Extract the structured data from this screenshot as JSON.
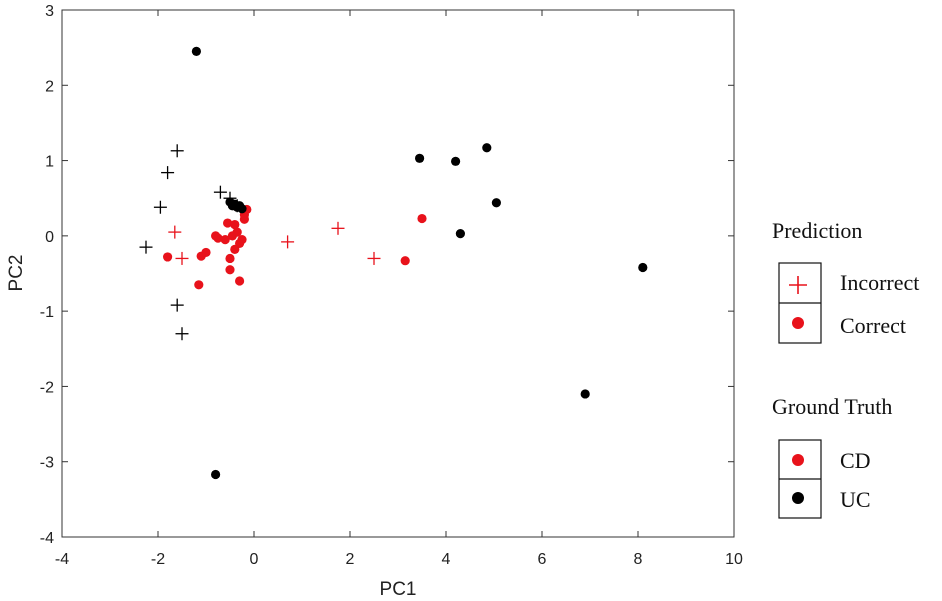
{
  "chart_data": {
    "type": "scatter",
    "xlabel": "PC1",
    "ylabel": "PC2",
    "xlim": [
      -4,
      10
    ],
    "ylim": [
      -4,
      3
    ],
    "xticks": [
      "-4",
      "-2",
      "0",
      "2",
      "4",
      "6",
      "8",
      "10"
    ],
    "yticks": [
      "3",
      "2",
      "1",
      "0",
      "-1",
      "-2",
      "-3",
      "-4"
    ],
    "grid": false,
    "legend_placement": "right",
    "colors": {
      "CD": "#e8121b",
      "UC": "#000000"
    },
    "series": [
      {
        "name": "Correct CD",
        "marker": "dot",
        "color": "#e8121b",
        "x": [
          -1.8,
          -1.15,
          -1.1,
          -1.0,
          -0.8,
          -0.75,
          -0.6,
          -0.55,
          -0.5,
          -0.5,
          -0.45,
          -0.4,
          -0.4,
          -0.35,
          -0.3,
          -0.3,
          -0.25,
          -0.2,
          -0.2,
          -0.15,
          3.15,
          3.5
        ],
        "y": [
          -0.28,
          -0.65,
          -0.27,
          -0.22,
          0.0,
          -0.03,
          -0.05,
          0.17,
          -0.3,
          -0.45,
          0.0,
          -0.18,
          0.15,
          0.05,
          -0.1,
          -0.6,
          -0.05,
          0.22,
          0.28,
          0.35,
          -0.33,
          0.23
        ]
      },
      {
        "name": "Correct UC",
        "marker": "dot",
        "color": "#000000",
        "x": [
          -1.2,
          -0.8,
          -0.5,
          -0.45,
          -0.4,
          -0.35,
          -0.3,
          -0.25,
          3.45,
          4.2,
          4.3,
          4.85,
          5.05,
          6.9,
          8.1
        ],
        "y": [
          2.45,
          -3.17,
          0.45,
          0.4,
          0.42,
          0.38,
          0.4,
          0.36,
          1.03,
          0.99,
          0.03,
          1.17,
          0.44,
          -2.1,
          -0.42
        ]
      },
      {
        "name": "Incorrect CD",
        "marker": "plus",
        "color": "#e8121b",
        "x": [
          -1.65,
          -1.5,
          0.7,
          1.75,
          2.5
        ],
        "y": [
          0.05,
          -0.3,
          -0.08,
          0.1,
          -0.3
        ]
      },
      {
        "name": "Incorrect UC",
        "marker": "plus",
        "color": "#000000",
        "x": [
          -2.25,
          -1.95,
          -1.8,
          -1.6,
          -1.6,
          -1.5,
          -0.7,
          -0.5,
          -0.35
        ],
        "y": [
          -0.15,
          0.38,
          0.84,
          1.13,
          -0.92,
          -1.3,
          0.58,
          0.5,
          0.4
        ]
      }
    ],
    "legend": {
      "prediction_title": "Prediction",
      "prediction_items": [
        "Incorrect",
        "Correct"
      ],
      "truth_title": "Ground Truth",
      "truth_items": [
        "CD",
        "UC"
      ]
    }
  }
}
